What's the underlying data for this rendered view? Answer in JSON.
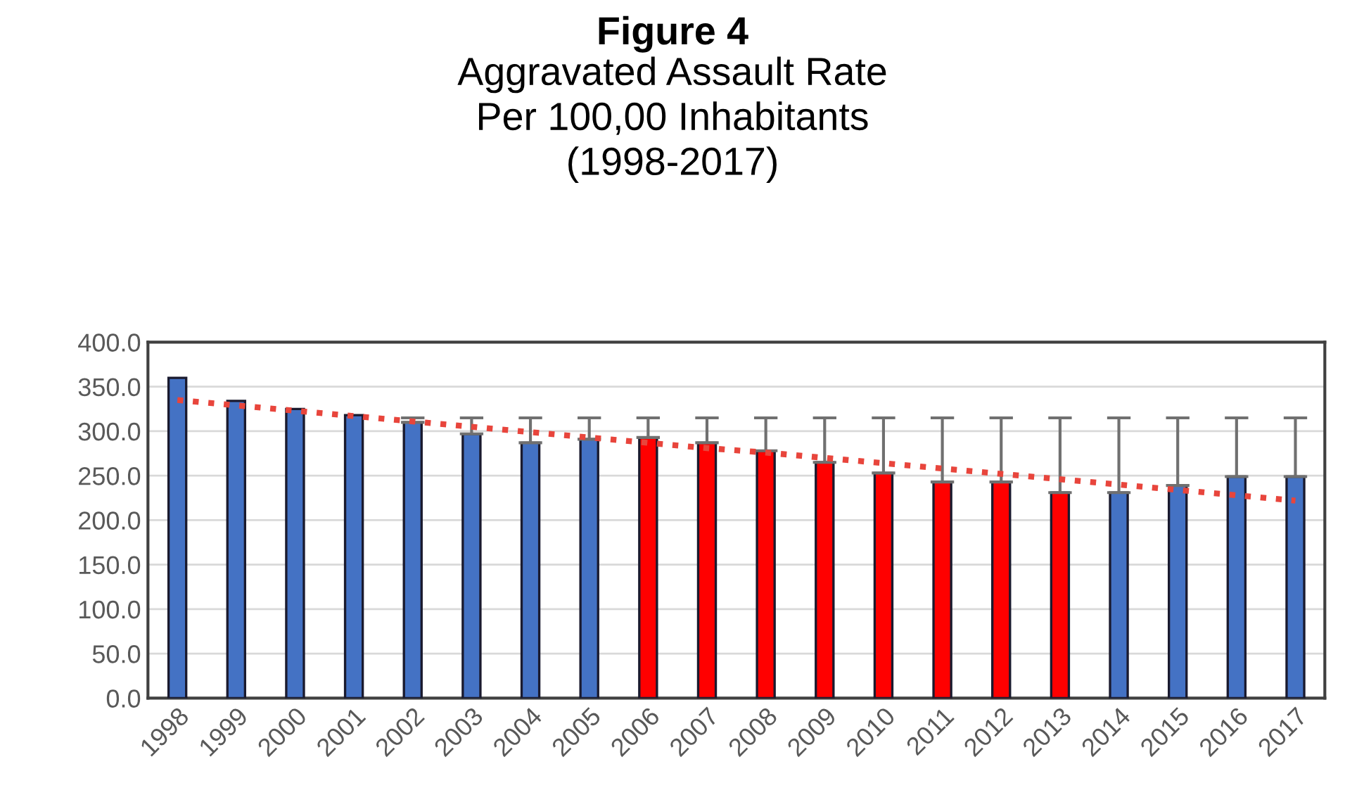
{
  "chart_data": {
    "type": "bar",
    "title": "Figure 4",
    "subtitle": "Aggravated Assault Rate\nPer 100,00 Inhabitants\n(1998-2017)",
    "categories": [
      "1998",
      "1999",
      "2000",
      "2001",
      "2002",
      "2003",
      "2004",
      "2005",
      "2006",
      "2007",
      "2008",
      "2009",
      "2010",
      "2011",
      "2012",
      "2013",
      "2014",
      "2015",
      "2016",
      "2017"
    ],
    "series": [
      {
        "values": [
          360,
          334,
          325,
          318,
          310,
          297,
          287,
          291,
          293,
          287,
          278,
          265,
          253,
          243,
          243,
          231,
          231,
          239,
          249,
          249
        ],
        "colors": [
          "#4472c4",
          "#4472c4",
          "#4472c4",
          "#4472c4",
          "#4472c4",
          "#4472c4",
          "#4472c4",
          "#4472c4",
          "#ff0000",
          "#ff0000",
          "#ff0000",
          "#ff0000",
          "#ff0000",
          "#ff0000",
          "#ff0000",
          "#ff0000",
          "#4472c4",
          "#4472c4",
          "#4472c4",
          "#4472c4"
        ],
        "errors": [
          null,
          null,
          null,
          null,
          [
            310,
            315
          ],
          [
            297,
            315
          ],
          [
            287,
            315
          ],
          [
            291,
            315
          ],
          [
            293,
            315
          ],
          [
            287,
            315
          ],
          [
            278,
            315
          ],
          [
            265,
            315
          ],
          [
            253,
            315
          ],
          [
            243,
            315
          ],
          [
            243,
            315
          ],
          [
            231,
            315
          ],
          [
            231,
            315
          ],
          [
            239,
            315
          ],
          [
            249,
            315
          ],
          [
            249,
            315
          ]
        ]
      },
      {
        "type": "line",
        "values": [
          335,
          329,
          323,
          317,
          311,
          305,
          299,
          293,
          287,
          281,
          276,
          270,
          264,
          258,
          252,
          246,
          240,
          234,
          228,
          222
        ],
        "color": "#e8453c",
        "line_style": "dotted",
        "marker": "none"
      }
    ],
    "ylim": [
      0,
      400
    ],
    "yticks": [
      {
        "value": 0,
        "label": "0.0"
      },
      {
        "value": 50,
        "label": "50.0"
      },
      {
        "value": 100,
        "label": "100.0"
      },
      {
        "value": 150,
        "label": "150.0"
      },
      {
        "value": 200,
        "label": "200.0"
      },
      {
        "value": 250,
        "label": "250.0"
      },
      {
        "value": 300,
        "label": "300.0"
      },
      {
        "value": 350,
        "label": "350.0"
      },
      {
        "value": 400,
        "label": "400.0"
      }
    ],
    "grid": "y",
    "legend": false
  }
}
